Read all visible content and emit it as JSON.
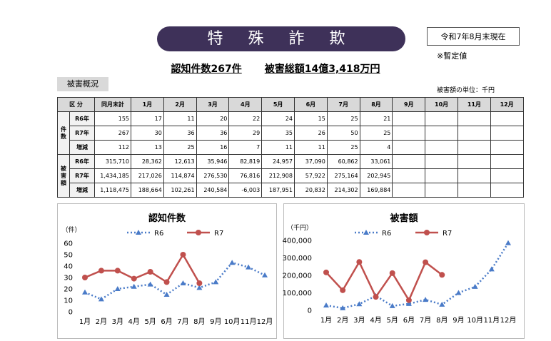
{
  "header": {
    "title": "特 殊 詐 欺",
    "as_of": "令和7年8月末現在",
    "note": "※暫定値",
    "summary": [
      "認知件数267件",
      "被害総額14億3,418万円"
    ],
    "section": "被害概況",
    "unit": "被害額の単位：千円"
  },
  "table": {
    "header": [
      "区 分",
      "同月末計",
      "1月",
      "2月",
      "3月",
      "4月",
      "5月",
      "6月",
      "7月",
      "8月",
      "9月",
      "10月",
      "11月",
      "12月"
    ],
    "groups": [
      {
        "label": "件数",
        "rows": [
          {
            "label": "R6年",
            "cells": [
              "155",
              "17",
              "11",
              "20",
              "22",
              "24",
              "15",
              "25",
              "21"
            ]
          },
          {
            "label": "R7年",
            "cells": [
              "267",
              "30",
              "36",
              "36",
              "29",
              "35",
              "26",
              "50",
              "25"
            ]
          },
          {
            "label": "増減",
            "cells": [
              "112",
              "13",
              "25",
              "16",
              "7",
              "11",
              "11",
              "25",
              "4"
            ]
          }
        ]
      },
      {
        "label": "被害額",
        "rows": [
          {
            "label": "R6年",
            "cells": [
              "315,710",
              "28,362",
              "12,613",
              "35,946",
              "82,819",
              "24,957",
              "37,090",
              "60,862",
              "33,061"
            ]
          },
          {
            "label": "R7年",
            "cells": [
              "1,434,185",
              "217,026",
              "114,874",
              "276,530",
              "76,816",
              "212,908",
              "57,922",
              "275,164",
              "202,945"
            ]
          },
          {
            "label": "増減",
            "cells": [
              "1,118,475",
              "188,664",
              "102,261",
              "240,584",
              "-6,003",
              "187,951",
              "20,832",
              "214,302",
              "169,884"
            ]
          }
        ]
      }
    ]
  },
  "chart_data": [
    {
      "type": "line",
      "title": "認知件数",
      "y_label": "（件）",
      "categories": [
        "1月",
        "2月",
        "3月",
        "4月",
        "5月",
        "6月",
        "7月",
        "8月",
        "9月",
        "10月",
        "11月",
        "12月"
      ],
      "ylim": [
        0,
        60
      ],
      "yticks": [
        0,
        10,
        20,
        30,
        40,
        50,
        60
      ],
      "series": [
        {
          "name": "R6",
          "color": "#4a7bc8",
          "values": [
            17,
            11,
            20,
            22,
            24,
            15,
            25,
            21,
            26,
            43,
            39,
            32
          ]
        },
        {
          "name": "R7",
          "color": "#c0504d",
          "values": [
            30,
            36,
            36,
            29,
            35,
            26,
            50,
            25,
            null,
            null,
            null,
            null
          ]
        }
      ]
    },
    {
      "type": "line",
      "title": "被害額",
      "y_label": "（千円）",
      "categories": [
        "1月",
        "2月",
        "3月",
        "4月",
        "5月",
        "6月",
        "7月",
        "8月",
        "9月",
        "10月",
        "11月",
        "12月"
      ],
      "ylim": [
        0,
        400000
      ],
      "yticks": [
        0,
        {
          "value": 100000,
          "label": "100,000"
        },
        {
          "value": 200000,
          "label": "200,000"
        },
        {
          "value": 300000,
          "label": "300,000"
        },
        {
          "value": 400000,
          "label": "400,000"
        }
      ],
      "series": [
        {
          "name": "R6",
          "color": "#4a7bc8",
          "values": [
            28362,
            12613,
            35946,
            82819,
            24957,
            37090,
            60862,
            33061,
            100000,
            135000,
            235000,
            385000
          ]
        },
        {
          "name": "R7",
          "color": "#c0504d",
          "values": [
            217026,
            114874,
            276530,
            76816,
            212908,
            57922,
            275164,
            202945,
            null,
            null,
            null,
            null
          ]
        }
      ]
    }
  ]
}
